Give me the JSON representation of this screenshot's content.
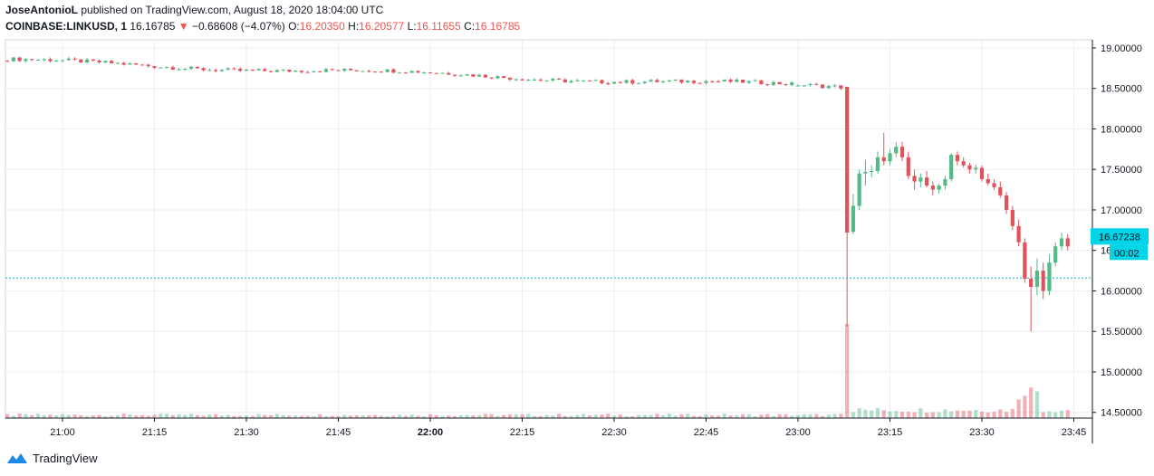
{
  "header": {
    "author": "JoseAntonioL",
    "published_text": "published on TradingView.com, August 18, 2020 18:04:00 UTC",
    "symbol": "COINBASE:LINKUSD, 1",
    "last_price": "16.16785",
    "change": "−0.68608 (−4.07%)",
    "o_label": "O:",
    "o_value": "16.20350",
    "h_label": "H:",
    "h_value": "16.20577",
    "l_label": "L:",
    "l_value": "16.11655",
    "c_label": "C:",
    "c_value": "16.16785"
  },
  "price_tag": {
    "price": "16.67238",
    "time": "00:02",
    "color": "#00d4e6"
  },
  "footer": {
    "brand": "TradingView"
  },
  "colors": {
    "up": "#53b987",
    "down": "#e2525b",
    "grid": "#eceef2",
    "hline": "#00b5d8"
  },
  "chart_data": {
    "type": "candlestick",
    "symbol": "COINBASE:LINKUSD",
    "interval": "1",
    "y_ticks": [
      "19.00000",
      "18.50000",
      "18.00000",
      "17.50000",
      "17.00000",
      "16.50000",
      "16.00000",
      "15.50000",
      "15.00000",
      "14.50000"
    ],
    "x_ticks": [
      "21:00",
      "21:15",
      "21:30",
      "21:45",
      "22:00",
      "22:15",
      "22:30",
      "22:45",
      "23:00",
      "23:15",
      "23:30",
      "23:45"
    ],
    "ylim": [
      14.43,
      19.1
    ],
    "horizontal_line": 16.16,
    "segments": [
      {
        "from": "20:51",
        "to": "23:00",
        "start": 18.84,
        "end": 18.53
      },
      {
        "from": "23:00",
        "to": "23:08",
        "start": 18.53,
        "end": 18.52
      }
    ],
    "candles": [
      {
        "t": "23:08",
        "o": 18.52,
        "h": 18.52,
        "l": 15.56,
        "c": 16.72
      },
      {
        "t": "23:09",
        "o": 16.73,
        "h": 17.2,
        "l": 16.7,
        "c": 17.05
      },
      {
        "t": "23:10",
        "o": 17.05,
        "h": 17.5,
        "l": 17.0,
        "c": 17.45
      },
      {
        "t": "23:11",
        "o": 17.45,
        "h": 17.62,
        "l": 17.3,
        "c": 17.47
      },
      {
        "t": "23:12",
        "o": 17.47,
        "h": 17.55,
        "l": 17.4,
        "c": 17.48
      },
      {
        "t": "23:13",
        "o": 17.48,
        "h": 17.72,
        "l": 17.45,
        "c": 17.65
      },
      {
        "t": "23:14",
        "o": 17.65,
        "h": 17.95,
        "l": 17.55,
        "c": 17.6
      },
      {
        "t": "23:15",
        "o": 17.6,
        "h": 17.75,
        "l": 17.55,
        "c": 17.7
      },
      {
        "t": "23:16",
        "o": 17.7,
        "h": 17.84,
        "l": 17.65,
        "c": 17.78
      },
      {
        "t": "23:17",
        "o": 17.78,
        "h": 17.84,
        "l": 17.6,
        "c": 17.65
      },
      {
        "t": "23:18",
        "o": 17.65,
        "h": 17.72,
        "l": 17.38,
        "c": 17.42
      },
      {
        "t": "23:19",
        "o": 17.42,
        "h": 17.5,
        "l": 17.25,
        "c": 17.35
      },
      {
        "t": "23:20",
        "o": 17.35,
        "h": 17.45,
        "l": 17.28,
        "c": 17.4
      },
      {
        "t": "23:21",
        "o": 17.4,
        "h": 17.48,
        "l": 17.28,
        "c": 17.3
      },
      {
        "t": "23:22",
        "o": 17.3,
        "h": 17.35,
        "l": 17.18,
        "c": 17.25
      },
      {
        "t": "23:23",
        "o": 17.25,
        "h": 17.32,
        "l": 17.2,
        "c": 17.3
      },
      {
        "t": "23:24",
        "o": 17.3,
        "h": 17.42,
        "l": 17.25,
        "c": 17.38
      },
      {
        "t": "23:25",
        "o": 17.38,
        "h": 17.7,
        "l": 17.35,
        "c": 17.68
      },
      {
        "t": "23:26",
        "o": 17.68,
        "h": 17.72,
        "l": 17.55,
        "c": 17.6
      },
      {
        "t": "23:27",
        "o": 17.6,
        "h": 17.65,
        "l": 17.52,
        "c": 17.55
      },
      {
        "t": "23:28",
        "o": 17.55,
        "h": 17.58,
        "l": 17.45,
        "c": 17.5
      },
      {
        "t": "23:29",
        "o": 17.5,
        "h": 17.56,
        "l": 17.45,
        "c": 17.52
      },
      {
        "t": "23:30",
        "o": 17.52,
        "h": 17.55,
        "l": 17.35,
        "c": 17.38
      },
      {
        "t": "23:31",
        "o": 17.38,
        "h": 17.45,
        "l": 17.3,
        "c": 17.33
      },
      {
        "t": "23:32",
        "o": 17.33,
        "h": 17.38,
        "l": 17.25,
        "c": 17.28
      },
      {
        "t": "23:33",
        "o": 17.28,
        "h": 17.35,
        "l": 17.15,
        "c": 17.18
      },
      {
        "t": "23:34",
        "o": 17.18,
        "h": 17.22,
        "l": 16.95,
        "c": 17.0
      },
      {
        "t": "23:35",
        "o": 17.0,
        "h": 17.05,
        "l": 16.75,
        "c": 16.8
      },
      {
        "t": "23:36",
        "o": 16.8,
        "h": 16.88,
        "l": 16.55,
        "c": 16.6
      },
      {
        "t": "23:37",
        "o": 16.6,
        "h": 16.65,
        "l": 16.1,
        "c": 16.15
      },
      {
        "t": "23:38",
        "o": 16.15,
        "h": 16.3,
        "l": 15.5,
        "c": 16.05
      },
      {
        "t": "23:39",
        "o": 16.05,
        "h": 16.4,
        "l": 15.95,
        "c": 16.25
      },
      {
        "t": "23:40",
        "o": 16.25,
        "h": 16.35,
        "l": 15.9,
        "c": 16.0
      },
      {
        "t": "23:41",
        "o": 16.0,
        "h": 16.45,
        "l": 15.95,
        "c": 16.35
      },
      {
        "t": "23:42",
        "o": 16.35,
        "h": 16.6,
        "l": 16.3,
        "c": 16.55
      },
      {
        "t": "23:43",
        "o": 16.55,
        "h": 16.72,
        "l": 16.5,
        "c": 16.65
      },
      {
        "t": "23:44",
        "o": 16.65,
        "h": 16.7,
        "l": 16.5,
        "c": 16.55
      }
    ],
    "volume": {
      "baseline_label": "small bars",
      "spike_time": "23:08",
      "spike_relative_height": 1.0
    }
  }
}
